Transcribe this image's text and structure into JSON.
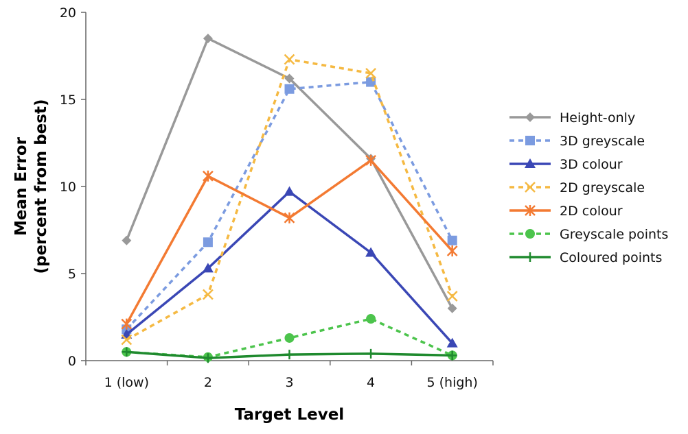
{
  "chart_data": {
    "type": "line",
    "title": "",
    "xlabel": "Target Level",
    "ylabel": [
      "Mean Error",
      "(percent from best)"
    ],
    "categories": [
      "1 (low)",
      "2",
      "3",
      "4",
      "5 (high)"
    ],
    "ylim": [
      0,
      20
    ],
    "yticks": [
      0,
      5,
      10,
      15,
      20
    ],
    "grid": false,
    "legend_position": "right",
    "series": [
      {
        "name": "Height-only",
        "values": [
          6.9,
          18.5,
          16.2,
          11.6,
          3.0
        ],
        "color": "#999999",
        "dash": "solid",
        "marker": "diamond"
      },
      {
        "name": "3D greyscale",
        "values": [
          1.8,
          6.8,
          15.6,
          16.0,
          6.9
        ],
        "color": "#7b9be0",
        "dash": "dashed",
        "marker": "square"
      },
      {
        "name": "3D colour",
        "values": [
          1.5,
          5.3,
          9.7,
          6.2,
          1.0
        ],
        "color": "#3a47b5",
        "dash": "solid",
        "marker": "triangle"
      },
      {
        "name": "2D greyscale",
        "values": [
          1.2,
          3.8,
          17.3,
          16.5,
          3.7
        ],
        "color": "#f5b942",
        "dash": "dashed",
        "marker": "x"
      },
      {
        "name": "2D colour",
        "values": [
          2.1,
          10.6,
          8.2,
          11.5,
          6.3
        ],
        "color": "#f37a32",
        "dash": "solid",
        "marker": "asterisk"
      },
      {
        "name": "Greyscale points",
        "values": [
          0.5,
          0.2,
          1.3,
          2.4,
          0.3
        ],
        "color": "#4cc44c",
        "dash": "dashed",
        "marker": "circle"
      },
      {
        "name": "Coloured points",
        "values": [
          0.5,
          0.15,
          0.35,
          0.4,
          0.3
        ],
        "color": "#1f8a2e",
        "dash": "solid",
        "marker": "plus"
      }
    ]
  }
}
